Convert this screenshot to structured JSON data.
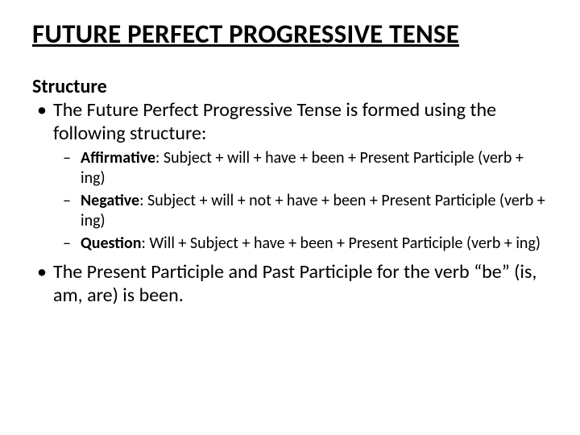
{
  "colors": {
    "background": "#ffffff",
    "text": "#000000"
  },
  "typography": {
    "title_fontsize": 33,
    "title_weight": 700,
    "title_underline": true,
    "section_label_fontsize": 24,
    "section_label_weight": 700,
    "body_fontsize": 24,
    "sub_fontsize": 20,
    "font_family": "Calibri"
  },
  "title": "FUTURE PERFECT PROGRESSIVE TENSE",
  "section_label": "Structure",
  "bullets": [
    {
      "text": "The Future Perfect Progressive Tense is formed using the following structure:",
      "sub": [
        {
          "lead": "Affirmative",
          "rest": ": Subject + will + have + been + Present Participle (verb + ing)"
        },
        {
          "lead": "Negative",
          "rest": ": Subject + will + not + have + been + Present Participle (verb + ing)"
        },
        {
          "lead": "Question",
          "rest": ": Will + Subject + have + been + Present Participle (verb + ing)"
        }
      ]
    },
    {
      "text": "The Present Participle and Past Participle for the verb “be” (is, am, are) is been.",
      "sub": []
    }
  ]
}
